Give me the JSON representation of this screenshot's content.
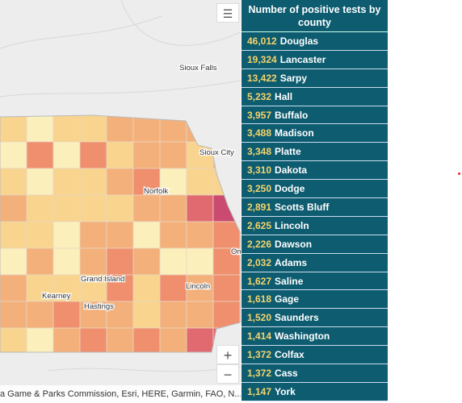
{
  "map": {
    "labels": [
      "Sioux Falls",
      "Sioux City",
      "Norfolk",
      "Grand Island",
      "Kearney",
      "Hastings",
      "Lincoln",
      "Om"
    ],
    "attribution": "a Game & Parks Commission, Esri, HERE, Garmin, FAO, N...",
    "zoom_in": "+",
    "zoom_out": "−"
  },
  "list": {
    "title": "Number of positive tests by county",
    "rows": [
      {
        "count": "46,012",
        "county": "Douglas"
      },
      {
        "count": "19,324",
        "county": "Lancaster"
      },
      {
        "count": "13,422",
        "county": "Sarpy"
      },
      {
        "count": "5,232",
        "county": "Hall"
      },
      {
        "count": "3,957",
        "county": "Buffalo"
      },
      {
        "count": "3,488",
        "county": "Madison"
      },
      {
        "count": "3,348",
        "county": "Platte"
      },
      {
        "count": "3,310",
        "county": "Dakota"
      },
      {
        "count": "3,250",
        "county": "Dodge"
      },
      {
        "count": "2,891",
        "county": "Scotts Bluff"
      },
      {
        "count": "2,625",
        "county": "Lincoln"
      },
      {
        "count": "2,226",
        "county": "Dawson"
      },
      {
        "count": "2,032",
        "county": "Adams"
      },
      {
        "count": "1,627",
        "county": "Saline"
      },
      {
        "count": "1,618",
        "county": "Gage"
      },
      {
        "count": "1,520",
        "county": "Saunders"
      },
      {
        "count": "1,414",
        "county": "Washington"
      },
      {
        "count": "1,372",
        "county": "Colfax"
      },
      {
        "count": "1,372",
        "county": "Cass"
      },
      {
        "count": "1,147",
        "county": "York"
      }
    ]
  }
}
